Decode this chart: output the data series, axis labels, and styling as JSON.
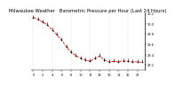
{
  "title": "Milwaukee Weather   Barometric Pressure per Hour (Last 24 Hours)",
  "background_color": "#ffffff",
  "grid_color": "#aaaaaa",
  "line_color": "#ff0000",
  "marker_color": "#000000",
  "hours": [
    0,
    1,
    2,
    3,
    4,
    5,
    6,
    7,
    8,
    9,
    10,
    11,
    12,
    13,
    14,
    15,
    16,
    17,
    18,
    19,
    20,
    21,
    22,
    23
  ],
  "pressure": [
    30.12,
    30.08,
    30.03,
    29.97,
    29.88,
    29.78,
    29.68,
    29.55,
    29.44,
    29.38,
    29.33,
    29.3,
    29.27,
    29.33,
    29.37,
    29.3,
    29.26,
    29.27,
    29.26,
    29.28,
    29.27,
    29.26,
    29.26,
    29.25
  ],
  "ylim_min": 29.1,
  "ylim_max": 30.2,
  "ytick_values": [
    29.2,
    29.4,
    29.6,
    29.8,
    30.0,
    30.2
  ],
  "ytick_labels": [
    "29.2",
    "29.4",
    "29.6",
    "29.8",
    "30.0",
    "30.2"
  ],
  "xtick_positions": [
    0,
    2,
    4,
    6,
    8,
    10,
    12,
    14,
    16,
    18,
    20,
    22
  ],
  "xtick_labels": [
    "0",
    "2",
    "4",
    "6",
    "8",
    "10",
    "12",
    "14",
    "16",
    "18",
    "20",
    "22"
  ],
  "grid_x_positions": [
    0,
    4,
    8,
    12,
    16,
    20
  ],
  "title_fontsize": 3.8,
  "tick_fontsize": 2.5,
  "linewidth": 0.6,
  "markersize": 1.0
}
